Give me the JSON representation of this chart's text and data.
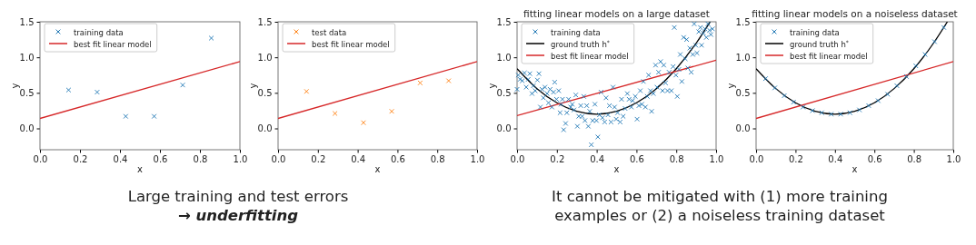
{
  "chart_data": [
    {
      "type": "scatter",
      "xlabel": "x",
      "ylabel": "y",
      "xlim": [
        0,
        1
      ],
      "ylim": [
        -0.3,
        1.5
      ],
      "xticks": [
        {
          "value": 0,
          "label": "0.0"
        },
        {
          "value": 0.2,
          "label": "0.2"
        },
        {
          "value": 0.4,
          "label": "0.4"
        },
        {
          "value": 0.6,
          "label": "0.6"
        },
        {
          "value": 0.8,
          "label": "0.8"
        },
        {
          "value": 1,
          "label": "1.0"
        }
      ],
      "yticks": [
        {
          "value": 0,
          "label": "0.0"
        },
        {
          "value": 0.5,
          "label": "0.5"
        },
        {
          "value": 1,
          "label": "1.0"
        },
        {
          "value": 1.5,
          "label": "1.5"
        }
      ],
      "grid": false,
      "legend": "top left",
      "annotations": [
        "Large training and test errors\n→ underfitting"
      ],
      "series": [
        {
          "name": "training data",
          "marker": "cross",
          "color": "#1f77b4",
          "x": [
            0.143,
            0.286,
            0.429,
            0.571,
            0.714,
            0.857
          ],
          "values": [
            0.54,
            0.51,
            0.17,
            0.17,
            0.61,
            1.27
          ]
        },
        {
          "name": "best fit linear model",
          "type": "line",
          "color": "#d62728",
          "x": [
            0,
            1
          ],
          "values": [
            0.14,
            0.94
          ]
        }
      ]
    },
    {
      "type": "scatter",
      "xlabel": "x",
      "ylabel": "y",
      "xlim": [
        0,
        1
      ],
      "ylim": [
        -0.3,
        1.5
      ],
      "xticks": [
        {
          "value": 0,
          "label": "0.0"
        },
        {
          "value": 0.2,
          "label": "0.2"
        },
        {
          "value": 0.4,
          "label": "0.4"
        },
        {
          "value": 0.6,
          "label": "0.6"
        },
        {
          "value": 0.8,
          "label": "0.8"
        },
        {
          "value": 1,
          "label": "1.0"
        }
      ],
      "yticks": [
        {
          "value": 0,
          "label": "0.0"
        },
        {
          "value": 0.5,
          "label": "0.5"
        },
        {
          "value": 1,
          "label": "1.0"
        },
        {
          "value": 1.5,
          "label": "1.5"
        }
      ],
      "grid": false,
      "legend": "top left",
      "series": [
        {
          "name": "test data",
          "marker": "cross",
          "color": "#ff7f0e",
          "x": [
            0.143,
            0.286,
            0.429,
            0.571,
            0.714,
            0.857
          ],
          "values": [
            0.52,
            0.21,
            0.08,
            0.24,
            0.64,
            0.67
          ]
        },
        {
          "name": "best fit linear model",
          "type": "line",
          "color": "#d62728",
          "x": [
            0,
            1
          ],
          "values": [
            0.14,
            0.94
          ]
        }
      ]
    },
    {
      "type": "scatter",
      "title": "fitting linear models on a large dataset",
      "xlabel": "x",
      "ylabel": "y",
      "xlim": [
        0,
        1
      ],
      "ylim": [
        -0.3,
        1.5
      ],
      "xticks": [
        {
          "value": 0,
          "label": "0.0"
        },
        {
          "value": 0.2,
          "label": "0.2"
        },
        {
          "value": 0.4,
          "label": "0.4"
        },
        {
          "value": 0.6,
          "label": "0.6"
        },
        {
          "value": 0.8,
          "label": "0.8"
        },
        {
          "value": 1,
          "label": "1.0"
        }
      ],
      "yticks": [
        {
          "value": 0,
          "label": "0.0"
        },
        {
          "value": 0.5,
          "label": "0.5"
        },
        {
          "value": 1,
          "label": "1.0"
        },
        {
          "value": 1.5,
          "label": "1.5"
        }
      ],
      "grid": false,
      "legend": "top left",
      "annotations": [
        "It cannot be mitigated with (1) more training\nexamples or (2) a noiseless training dataset"
      ],
      "series": [
        {
          "name": "training data",
          "marker": "cross",
          "color": "#1f77b4",
          "x": [
            0.0,
            0.006,
            0.015,
            0.026,
            0.037,
            0.046,
            0.056,
            0.064,
            0.075,
            0.082,
            0.091,
            0.102,
            0.11,
            0.117,
            0.125,
            0.132,
            0.14,
            0.151,
            0.158,
            0.166,
            0.175,
            0.183,
            0.189,
            0.198,
            0.209,
            0.216,
            0.221,
            0.228,
            0.234,
            0.244,
            0.25,
            0.259,
            0.269,
            0.277,
            0.286,
            0.295,
            0.303,
            0.31,
            0.32,
            0.327,
            0.335,
            0.341,
            0.35,
            0.358,
            0.365,
            0.373,
            0.38,
            0.391,
            0.399,
            0.406,
            0.414,
            0.422,
            0.429,
            0.44,
            0.447,
            0.457,
            0.464,
            0.472,
            0.482,
            0.49,
            0.498,
            0.505,
            0.518,
            0.525,
            0.533,
            0.543,
            0.554,
            0.563,
            0.574,
            0.581,
            0.594,
            0.603,
            0.612,
            0.619,
            0.627,
            0.635,
            0.645,
            0.654,
            0.661,
            0.67,
            0.676,
            0.685,
            0.696,
            0.703,
            0.711,
            0.721,
            0.731,
            0.737,
            0.746,
            0.756,
            0.764,
            0.775,
            0.784,
            0.79,
            0.798,
            0.805,
            0.813,
            0.82,
            0.828,
            0.837,
            0.845,
            0.852,
            0.858,
            0.868,
            0.875,
            0.883,
            0.89,
            0.898,
            0.904,
            0.913,
            0.921,
            0.927,
            0.936,
            0.944,
            0.951,
            0.959,
            0.967,
            0.974,
            0.982
          ],
          "values": [
            0.55,
            0.75,
            0.69,
            0.67,
            0.78,
            0.58,
            0.69,
            0.77,
            0.49,
            0.6,
            0.53,
            0.68,
            0.77,
            0.3,
            0.55,
            0.43,
            0.58,
            0.49,
            0.36,
            0.55,
            0.3,
            0.51,
            0.65,
            0.41,
            0.53,
            0.22,
            0.34,
            0.41,
            -0.02,
            0.07,
            0.22,
            0.41,
            0.3,
            0.34,
            0.26,
            0.47,
            0.03,
            0.17,
            0.32,
            0.17,
            0.45,
            0.11,
            0.32,
            0.03,
            0.24,
            -0.23,
            0.11,
            0.34,
            0.11,
            -0.12,
            0.19,
            0.51,
            0.15,
            0.09,
            0.43,
            0.19,
            0.32,
            0.09,
            0.58,
            0.3,
            0.13,
            0.22,
            0.09,
            0.41,
            0.17,
            0.28,
            0.49,
            0.41,
            0.3,
            0.39,
            0.45,
            0.13,
            0.32,
            0.53,
            0.34,
            0.66,
            0.3,
            0.45,
            0.75,
            0.53,
            0.24,
            0.49,
            0.89,
            0.58,
            0.79,
            0.94,
            0.53,
            0.89,
            0.64,
            0.53,
            0.79,
            0.53,
            0.87,
            1.42,
            0.75,
            0.45,
            0.83,
            1.04,
            0.66,
            1.28,
            0.98,
            1.25,
            0.85,
            1.13,
            0.79,
            1.04,
            1.47,
            1.17,
            1.06,
            1.36,
            1.42,
            1.17,
            1.34,
            1.4,
            1.28,
            1.47,
            1.38,
            1.32,
            1.4
          ]
        },
        {
          "name": "ground truth h$^{*}$",
          "type": "line",
          "color": "#000000",
          "x": [
            0,
            0.1,
            0.2,
            0.3,
            0.4,
            0.5,
            0.6,
            0.7,
            0.8,
            0.9,
            0.97
          ],
          "values": [
            0.84,
            0.56,
            0.36,
            0.24,
            0.2,
            0.24,
            0.36,
            0.56,
            0.84,
            1.2,
            1.5
          ]
        },
        {
          "name": "best fit linear model",
          "type": "line",
          "color": "#d62728",
          "x": [
            0,
            1
          ],
          "values": [
            0.18,
            0.96
          ]
        }
      ]
    },
    {
      "type": "scatter",
      "title": "fitting linear models on a noiseless dataset",
      "xlabel": "x",
      "ylabel": "y",
      "xlim": [
        0,
        1
      ],
      "ylim": [
        -0.3,
        1.5
      ],
      "xticks": [
        {
          "value": 0,
          "label": "0.0"
        },
        {
          "value": 0.2,
          "label": "0.2"
        },
        {
          "value": 0.4,
          "label": "0.4"
        },
        {
          "value": 0.6,
          "label": "0.6"
        },
        {
          "value": 0.8,
          "label": "0.8"
        },
        {
          "value": 1,
          "label": "1.0"
        }
      ],
      "yticks": [
        {
          "value": 0,
          "label": "0.0"
        },
        {
          "value": 0.5,
          "label": "0.5"
        },
        {
          "value": 1,
          "label": "1.0"
        },
        {
          "value": 1.5,
          "label": "1.5"
        }
      ],
      "grid": false,
      "legend": "top left",
      "series": [
        {
          "name": "training data",
          "marker": "cross",
          "color": "#1f77b4",
          "x": [
            0.048,
            0.095,
            0.143,
            0.19,
            0.238,
            0.286,
            0.333,
            0.381,
            0.429,
            0.476,
            0.524,
            0.571,
            0.619,
            0.667,
            0.714,
            0.762,
            0.81,
            0.857,
            0.905,
            0.952
          ],
          "values": [
            0.7,
            0.57,
            0.46,
            0.37,
            0.3,
            0.25,
            0.22,
            0.2,
            0.2,
            0.22,
            0.26,
            0.32,
            0.39,
            0.48,
            0.6,
            0.73,
            0.88,
            1.04,
            1.22,
            1.42
          ]
        },
        {
          "name": "ground truth h$^{*}$",
          "type": "line",
          "color": "#000000",
          "x": [
            0,
            0.1,
            0.2,
            0.3,
            0.4,
            0.5,
            0.6,
            0.7,
            0.8,
            0.9,
            0.97
          ],
          "values": [
            0.84,
            0.56,
            0.36,
            0.24,
            0.2,
            0.24,
            0.36,
            0.56,
            0.84,
            1.2,
            1.5
          ]
        },
        {
          "name": "best fit linear model",
          "type": "line",
          "color": "#d62728",
          "x": [
            0,
            1
          ],
          "values": [
            0.14,
            0.94
          ]
        }
      ]
    }
  ]
}
